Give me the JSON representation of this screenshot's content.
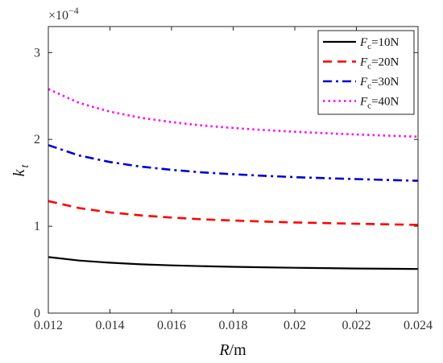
{
  "chart_data": {
    "type": "line",
    "xlabel": "R/m",
    "ylabel": "k_t",
    "xlim": [
      0.012,
      0.024
    ],
    "ylim": [
      0,
      3.3
    ],
    "x_ticks": [
      "0.012",
      "0.014",
      "0.016",
      "0.018",
      "0.02",
      "0.022",
      "0.024"
    ],
    "y_ticks": [
      "0",
      "1",
      "2",
      "3"
    ],
    "y_scale_label": "×10",
    "y_scale_exponent": "−4",
    "legend_position": "top-right",
    "grid": false,
    "x": [
      0.012,
      0.013,
      0.014,
      0.015,
      0.016,
      0.017,
      0.018,
      0.019,
      0.02,
      0.021,
      0.022,
      0.023,
      0.024
    ],
    "series": [
      {
        "name": "F_c=10N",
        "legend": {
          "var": "F",
          "sub": "c",
          "rest": "=10N"
        },
        "color": "#000000",
        "style": "solid",
        "values": [
          0.645,
          0.605,
          0.58,
          0.562,
          0.55,
          0.54,
          0.533,
          0.527,
          0.522,
          0.518,
          0.514,
          0.511,
          0.508
        ]
      },
      {
        "name": "F_c=20N",
        "legend": {
          "var": "F",
          "sub": "c",
          "rest": "=20N"
        },
        "color": "#ff0000",
        "style": "dashed",
        "values": [
          1.29,
          1.21,
          1.16,
          1.125,
          1.1,
          1.08,
          1.066,
          1.054,
          1.044,
          1.036,
          1.029,
          1.022,
          1.016
        ]
      },
      {
        "name": "F_c=30N",
        "legend": {
          "var": "F",
          "sub": "c",
          "rest": "=30N"
        },
        "color": "#0000cc",
        "style": "dashdot",
        "values": [
          1.935,
          1.815,
          1.74,
          1.687,
          1.65,
          1.62,
          1.599,
          1.581,
          1.566,
          1.554,
          1.543,
          1.533,
          1.524
        ]
      },
      {
        "name": "F_c=40N",
        "legend": {
          "var": "F",
          "sub": "c",
          "rest": "=40N"
        },
        "color": "#ff00ff",
        "style": "dotted",
        "values": [
          2.58,
          2.42,
          2.32,
          2.25,
          2.2,
          2.16,
          2.132,
          2.108,
          2.088,
          2.072,
          2.057,
          2.044,
          2.032
        ]
      }
    ]
  }
}
